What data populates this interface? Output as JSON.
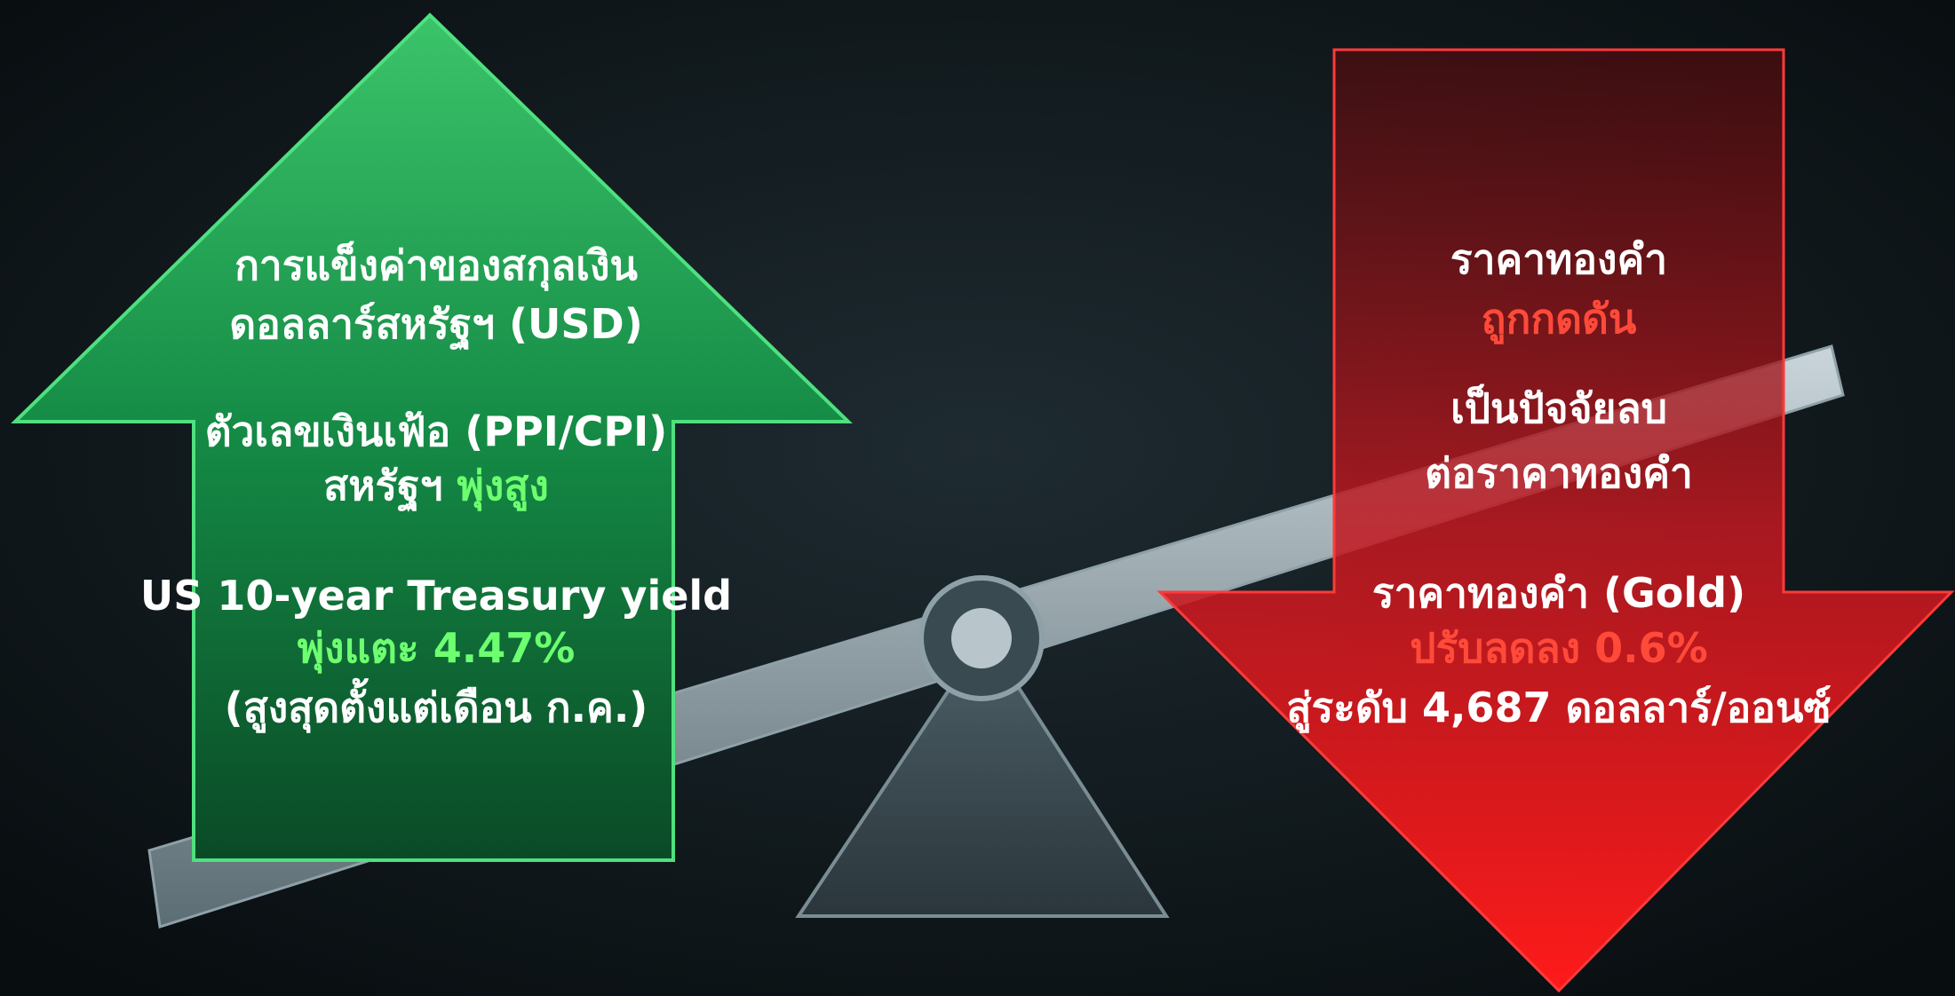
{
  "left": {
    "groups": [
      {
        "lines": [
          {
            "text": "การแข็งค่าของสกุลเงิน"
          },
          {
            "text": "ดอลลาร์สหรัฐฯ (USD)"
          }
        ]
      },
      {
        "lines": [
          {
            "text": "ตัวเลขเงินเฟ้อ (PPI/CPI)"
          },
          {
            "text": "สหรัฐฯ",
            "accent": "พุ่งสูง"
          }
        ]
      },
      {
        "lines": [
          {
            "text": "US 10-year Treasury yield"
          },
          {
            "accent": "พุ่งแตะ 4.47%"
          },
          {
            "text": "(สูงสุดตั้งแต่เดือน ก.ค.)"
          }
        ]
      }
    ]
  },
  "right": {
    "groups": [
      {
        "lines": [
          {
            "text": "ราคาทองคำ"
          },
          {
            "accent": "ถูกกดดัน"
          }
        ]
      },
      {
        "lines": [
          {
            "text": "เป็นปัจจัยลบ"
          },
          {
            "text": "ต่อราคาทองคำ"
          }
        ]
      },
      {
        "lines": [
          {
            "text": "ราคาทองคำ (Gold)"
          },
          {
            "accent": "ปรับลดลง 0.6%"
          },
          {
            "text": "สู่ระดับ 4,687 ดอลลาร์/ออนซ์"
          }
        ]
      }
    ]
  }
}
